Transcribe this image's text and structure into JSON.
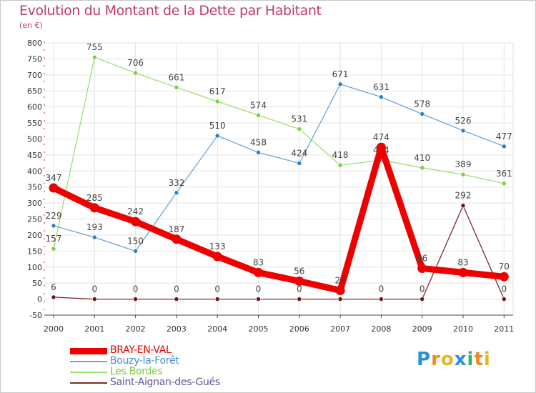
{
  "header": {
    "title": "Evolution du Montant de la Dette par Habitant",
    "subtitle": "(en €)"
  },
  "logo": {
    "letters": [
      "P",
      "r",
      "o",
      "x",
      "i",
      "t",
      "i"
    ],
    "colors": [
      "#2a8fd6",
      "#f08a1c",
      "#e8b61a",
      "#2a8fd6",
      "#2bb46a",
      "#f08a1c",
      "#e8b61a"
    ]
  },
  "chart_data": {
    "type": "line",
    "title": "Evolution du Montant de la Dette par Habitant",
    "ylabel": "(en €)",
    "xlabel": "",
    "categories": [
      "2000",
      "2001",
      "2002",
      "2003",
      "2004",
      "2005",
      "2006",
      "2007",
      "2008",
      "2009",
      "2010",
      "2011"
    ],
    "ylim": [
      -50,
      800
    ],
    "yticks": [
      -50,
      0,
      50,
      100,
      150,
      200,
      250,
      300,
      350,
      400,
      450,
      500,
      550,
      600,
      650,
      700,
      750,
      800
    ],
    "legend_position": "bottom-left",
    "series": [
      {
        "name": "Saint-Aignan-des-Gués",
        "color": "#7a2a2a",
        "point_color": "#6e1414",
        "values": [
          6,
          0,
          0,
          0,
          0,
          0,
          0,
          0,
          0,
          0,
          292,
          0
        ],
        "labels": [
          "6",
          "0",
          "0",
          "0",
          "0",
          "0",
          "0",
          "0",
          "0",
          "0",
          "292",
          "0"
        ]
      },
      {
        "name": "Les Bordes",
        "color": "#9ee070",
        "point_color": "#7ccf3e",
        "values": [
          157,
          755,
          706,
          661,
          617,
          574,
          531,
          418,
          434,
          410,
          389,
          361
        ],
        "labels": [
          "157",
          "755",
          "706",
          "661",
          "617",
          "574",
          "531",
          "418",
          "434",
          "410",
          "389",
          "361"
        ]
      },
      {
        "name": "Bouzy-la-Forêt",
        "color": "#6aa6d8",
        "point_color": "#2f7fc0",
        "values": [
          229,
          193,
          150,
          332,
          510,
          458,
          424,
          671,
          631,
          578,
          526,
          477
        ],
        "labels": [
          "229",
          "193",
          "150",
          "332",
          "510",
          "458",
          "424",
          "671",
          "631",
          "578",
          "526",
          "477"
        ]
      },
      {
        "name": "BRAY-EN-VAL",
        "color": "#ee0000",
        "point_color": "#ee0000",
        "values": [
          347,
          285,
          242,
          187,
          133,
          83,
          56,
          27,
          474,
          96,
          83,
          70
        ],
        "labels": [
          "347",
          "285",
          "242",
          "187",
          "133",
          "83",
          "56",
          "27",
          "474",
          "96",
          "83",
          "70"
        ]
      }
    ],
    "legend": [
      {
        "name": "BRAY-EN-VAL",
        "color": "#ee0000"
      },
      {
        "name": "Bouzy-la-Forêt",
        "color": "#6aa6d8"
      },
      {
        "name": "Les Bordes",
        "color": "#9ee070"
      },
      {
        "name": "Saint-Aignan-des-Gués",
        "color": "#7a2a2a"
      }
    ]
  }
}
